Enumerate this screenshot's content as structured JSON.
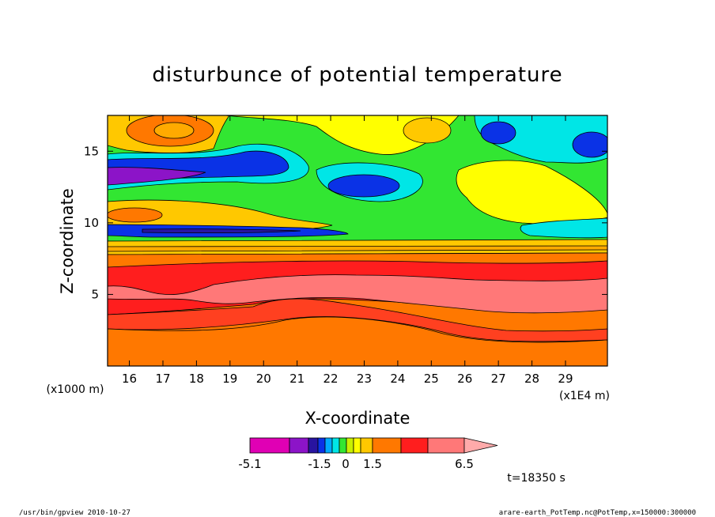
{
  "chart_data": {
    "type": "heatmap",
    "title": "disturbunce of potential temperature",
    "xlabel": "X-coordinate",
    "ylabel": "Z-coordinate",
    "x_unit": "(x1E4 m)",
    "y_unit": "(x1000 m)",
    "xlim": [
      15.35,
      30.25
    ],
    "ylim": [
      0,
      17.5
    ],
    "x_ticks": [
      "16",
      "17",
      "18",
      "19",
      "20",
      "21",
      "22",
      "23",
      "24",
      "25",
      "26",
      "27",
      "28",
      "29"
    ],
    "y_ticks": [
      "5",
      "10",
      "15"
    ],
    "grid": false,
    "colorbar": {
      "labels": [
        "-5.1",
        "-1.5",
        "0",
        "1.5",
        "6.5"
      ],
      "colors": [
        "#e000b4",
        "#8c14c8",
        "#2814a0",
        "#0a32e6",
        "#00aaff",
        "#00e6e6",
        "#32e632",
        "#c8f000",
        "#ffff00",
        "#ffc800",
        "#ff7800",
        "#ff1e1e",
        "#ff7878",
        "#ffaaaa"
      ]
    },
    "time_label": "t=18350 s"
  },
  "footer": {
    "left": "/usr/bin/gpview   2010-10-27",
    "right": "arare-earth_PotTemp.nc@PotTemp,x=150000:300000"
  }
}
